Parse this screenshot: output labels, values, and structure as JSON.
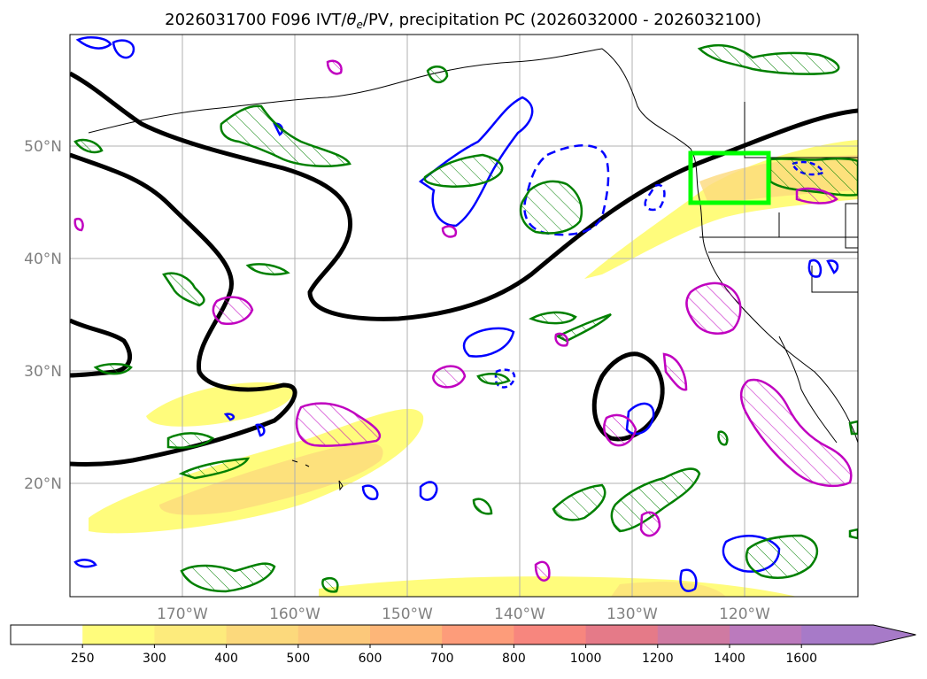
{
  "title": {
    "prefix": "2026031700 F096 IVT/",
    "theta": "θ",
    "sub": "e",
    "suffix": "/PV, precipitation PC (2026032000 - 2026032100)"
  },
  "map": {
    "lat_labels": [
      "50°N",
      "40°N",
      "30°N",
      "20°N"
    ],
    "lon_labels": [
      "170°W",
      "160°W",
      "150°W",
      "140°W",
      "130°W",
      "120°W"
    ],
    "fields": {
      "ivt": {
        "name": "IVT shading",
        "color": "#fff36b"
      },
      "theta_e": {
        "name": "theta-e contour",
        "color": "#000000"
      },
      "pv": {
        "name": "PV contours",
        "color": "#0000ff"
      },
      "precip_pos": {
        "name": "precipitation PC positive",
        "color": "#008000"
      },
      "precip_neg": {
        "name": "precipitation PC negative",
        "color": "#c000c0"
      },
      "box": {
        "name": "highlight box",
        "color": "#00ff00"
      }
    }
  },
  "colorbar": {
    "ticks": [
      "250",
      "300",
      "400",
      "500",
      "600",
      "700",
      "800",
      "1000",
      "1200",
      "1400",
      "1600"
    ],
    "colors": [
      "#ffffff",
      "#fffc7c",
      "#fdeb7c",
      "#fcd97c",
      "#fcc87a",
      "#fdb678",
      "#fd9c7a",
      "#f7867e",
      "#e57a88",
      "#cf7aa2",
      "#bb7abd",
      "#a77ac8"
    ]
  }
}
